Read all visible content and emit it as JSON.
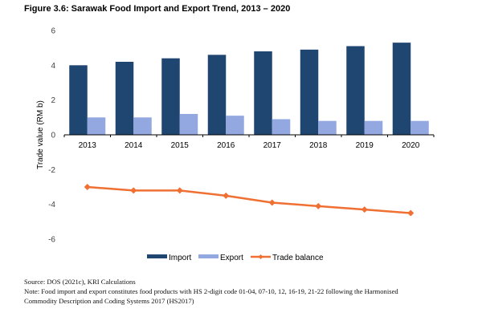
{
  "figure": {
    "title": "Figure 3.6: Sarawak Food Import and Export Trend, 2013 – 2020",
    "source": "Source: DOS (2021c), KRI Calculations",
    "note_line1": "Note: Food import and export constitutes food products with HS 2-digit code 01-04, 07-10, 12, 16-19, 21-22 following the Harmonised",
    "note_line2": "Commodity Description and Coding Systems 2017 (HS2017)"
  },
  "chart_data": {
    "type": "bar",
    "title": "Figure 3.6: Sarawak Food Import and Export Trend, 2013 – 2020",
    "xlabel": "",
    "ylabel": "Trade value (RM b)",
    "ylim": [
      -6,
      6
    ],
    "yticks": [
      6,
      4,
      2,
      0,
      -2,
      -4,
      -6
    ],
    "categories": [
      "2013",
      "2014",
      "2015",
      "2016",
      "2017",
      "2018",
      "2019",
      "2020"
    ],
    "grid": false,
    "legend_position": "bottom",
    "series": [
      {
        "name": "Import",
        "type": "bar",
        "color": "#1f4571",
        "values": [
          4.0,
          4.2,
          4.4,
          4.6,
          4.8,
          4.9,
          5.1,
          5.3
        ]
      },
      {
        "name": "Export",
        "type": "bar",
        "color": "#93a8e0",
        "values": [
          1.0,
          1.0,
          1.2,
          1.1,
          0.9,
          0.8,
          0.8,
          0.8
        ]
      },
      {
        "name": "Trade balance",
        "type": "line",
        "color": "#ef7032",
        "marker": "diamond",
        "values": [
          -3.0,
          -3.2,
          -3.2,
          -3.5,
          -3.9,
          -4.1,
          -4.3,
          -4.5
        ]
      }
    ]
  }
}
